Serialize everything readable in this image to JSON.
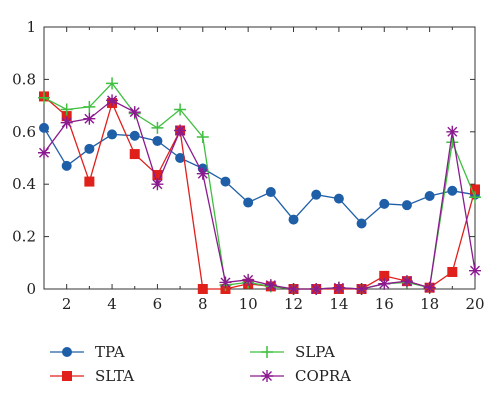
{
  "chart_data": {
    "type": "line",
    "title": "",
    "xlabel": "",
    "ylabel": "",
    "x": [
      1,
      2,
      3,
      4,
      5,
      6,
      7,
      8,
      9,
      10,
      11,
      12,
      13,
      14,
      15,
      16,
      17,
      18,
      19,
      20
    ],
    "xlim": [
      1,
      20
    ],
    "ylim": [
      0,
      1
    ],
    "xticks": [
      2,
      4,
      6,
      8,
      10,
      12,
      14,
      16,
      18,
      20
    ],
    "xtick_labels": [
      "2",
      "4",
      "6",
      "8",
      "10",
      "12",
      "14",
      "16",
      "18",
      "20"
    ],
    "yticks": [
      0,
      0.2,
      0.4,
      0.6,
      0.8,
      1
    ],
    "ytick_labels": [
      "0",
      "0.2",
      "0.4",
      "0.6",
      "0.8",
      "1"
    ],
    "grid": false,
    "legend_position": "bottom",
    "series": [
      {
        "name": "TPA",
        "color": "#1f5fa8",
        "marker": "circle",
        "values": [
          0.615,
          0.47,
          0.535,
          0.59,
          0.585,
          0.565,
          0.5,
          0.46,
          0.41,
          0.33,
          0.37,
          0.265,
          0.36,
          0.345,
          0.25,
          0.325,
          0.32,
          0.355,
          0.375,
          0.36
        ]
      },
      {
        "name": "SLTA",
        "color": "#e0201b",
        "marker": "square",
        "values": [
          0.735,
          0.66,
          0.41,
          0.71,
          0.515,
          0.435,
          0.605,
          0.0,
          0.0,
          0.02,
          0.01,
          0.0,
          0.0,
          0.0,
          0.0,
          0.05,
          0.03,
          0.005,
          0.065,
          0.38
        ]
      },
      {
        "name": "SLPA",
        "color": "#3fbf3f",
        "marker": "plus",
        "values": [
          0.73,
          0.685,
          0.695,
          0.785,
          0.67,
          0.615,
          0.685,
          0.58,
          0.015,
          0.025,
          0.01,
          0.0,
          0.0,
          0.005,
          0.0,
          0.02,
          0.025,
          0.005,
          0.56,
          0.35
        ]
      },
      {
        "name": "COPRA",
        "color": "#8b1a8f",
        "marker": "star",
        "values": [
          0.52,
          0.635,
          0.65,
          0.72,
          0.675,
          0.4,
          0.605,
          0.44,
          0.025,
          0.035,
          0.015,
          0.0,
          0.0,
          0.005,
          0.0,
          0.02,
          0.03,
          0.005,
          0.6,
          0.07
        ]
      }
    ]
  }
}
